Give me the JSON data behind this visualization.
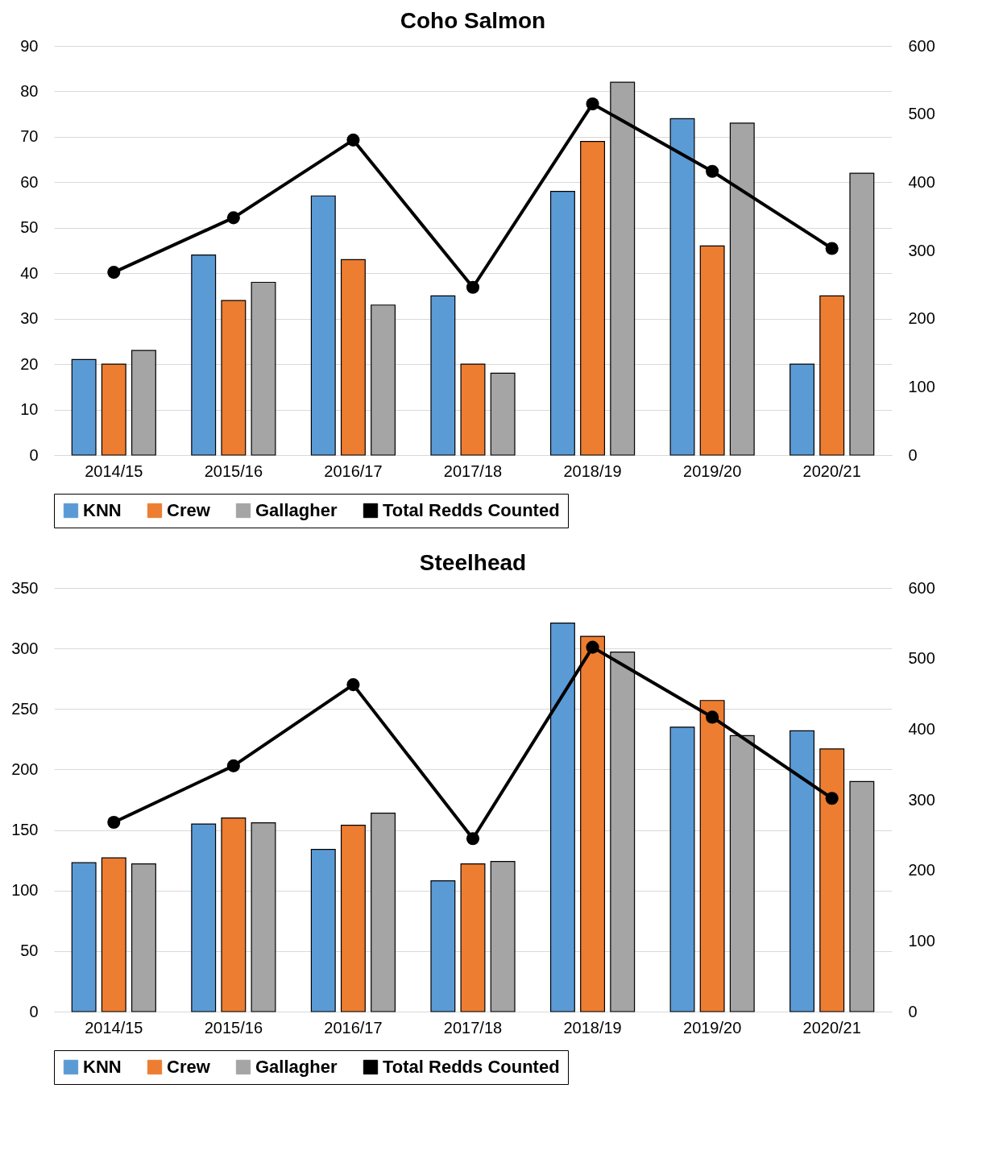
{
  "chart_data": [
    {
      "type": "bar",
      "title": "Coho Salmon",
      "categories": [
        "2014/15",
        "2015/16",
        "2016/17",
        "2017/18",
        "2018/19",
        "2019/20",
        "2020/21"
      ],
      "ylim": [
        0,
        90
      ],
      "yticks": [
        0,
        10,
        20,
        30,
        40,
        50,
        60,
        70,
        80,
        90
      ],
      "y2lim": [
        0,
        600
      ],
      "y2ticks": [
        0,
        100,
        200,
        300,
        400,
        500,
        600
      ],
      "grid": "y",
      "legend": "bottom",
      "marker": "circle",
      "line_style": "solid",
      "series": [
        {
          "name": "KNN",
          "type": "bar",
          "color": "#5b9bd5",
          "values": [
            21,
            44,
            57,
            35,
            58,
            74,
            20
          ]
        },
        {
          "name": "Crew",
          "type": "bar",
          "color": "#ed7d31",
          "values": [
            20,
            34,
            43,
            20,
            69,
            46,
            35
          ]
        },
        {
          "name": "Gallagher",
          "type": "bar",
          "color": "#a5a5a5",
          "values": [
            23,
            38,
            33,
            18,
            82,
            73,
            62
          ]
        },
        {
          "name": "Total Redds Counted",
          "type": "line",
          "axis": "y2",
          "color": "#000000",
          "values": [
            268,
            348,
            462,
            246,
            515,
            416,
            303
          ]
        }
      ]
    },
    {
      "type": "bar",
      "title": "Steelhead",
      "categories": [
        "2014/15",
        "2015/16",
        "2016/17",
        "2017/18",
        "2018/19",
        "2019/20",
        "2020/21"
      ],
      "ylim": [
        0,
        350
      ],
      "yticks": [
        0,
        50,
        100,
        150,
        200,
        250,
        300,
        350
      ],
      "y2lim": [
        0,
        600
      ],
      "y2ticks": [
        0,
        100,
        200,
        300,
        400,
        500,
        600
      ],
      "grid": "y",
      "legend": "bottom",
      "marker": "circle",
      "line_style": "solid",
      "series": [
        {
          "name": "KNN",
          "type": "bar",
          "color": "#5b9bd5",
          "values": [
            123,
            155,
            134,
            108,
            321,
            235,
            232
          ]
        },
        {
          "name": "Crew",
          "type": "bar",
          "color": "#ed7d31",
          "values": [
            127,
            160,
            154,
            122,
            310,
            257,
            217
          ]
        },
        {
          "name": "Gallagher",
          "type": "bar",
          "color": "#a5a5a5",
          "values": [
            122,
            156,
            164,
            124,
            297,
            228,
            190
          ]
        },
        {
          "name": "Total Redds Counted",
          "type": "line",
          "axis": "y2",
          "color": "#000000",
          "values": [
            268,
            348,
            463,
            245,
            516,
            417,
            302
          ]
        }
      ]
    }
  ]
}
